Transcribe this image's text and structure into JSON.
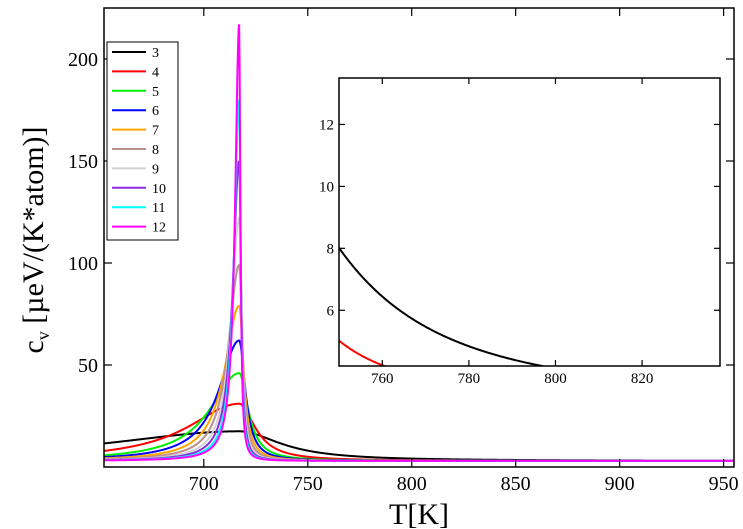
{
  "chart_data": {
    "type": "line",
    "xlabel": "T[K]",
    "ylabel_main": "c",
    "ylabel_sub": "v",
    "ylabel_rest": " [µeV/(K*atom)]",
    "xlim": [
      652,
      955
    ],
    "ylim": [
      0,
      225
    ],
    "x_ticks": [
      700,
      750,
      800,
      850,
      900,
      950
    ],
    "y_ticks": [
      50,
      100,
      150,
      200
    ],
    "legend_position": "top-left",
    "peak_T": 717,
    "series": [
      {
        "name": "3",
        "color": "#000000",
        "peak": 17.5,
        "width": 60
      },
      {
        "name": "4",
        "color": "#ff0000",
        "peak": 31,
        "width": 23
      },
      {
        "name": "5",
        "color": "#00ee00",
        "peak": 46,
        "width": 13
      },
      {
        "name": "6",
        "color": "#0000ff",
        "peak": 62,
        "width": 9
      },
      {
        "name": "7",
        "color": "#ffa500",
        "peak": 79,
        "width": 6.5
      },
      {
        "name": "8",
        "color": "#bc8f8f",
        "peak": 99,
        "width": 4.8
      },
      {
        "name": "9",
        "color": "#d3d3d3",
        "peak": 122,
        "width": 3.6
      },
      {
        "name": "10",
        "color": "#8a2be2",
        "peak": 150,
        "width": 2.8
      },
      {
        "name": "11",
        "color": "#00ffff",
        "peak": 180,
        "width": 2.2
      },
      {
        "name": "12",
        "color": "#ff00ff",
        "peak": 217,
        "width": 1.8
      }
    ],
    "inset": {
      "xlim": [
        750,
        838
      ],
      "ylim": [
        4.2,
        13.5
      ],
      "x_ticks": [
        760,
        780,
        800,
        820
      ],
      "y_ticks": [
        6,
        8,
        10,
        12
      ]
    }
  }
}
